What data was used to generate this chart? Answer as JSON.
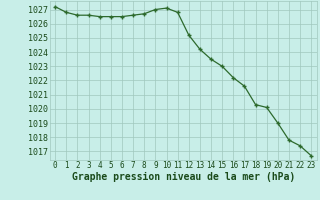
{
  "x": [
    0,
    1,
    2,
    3,
    4,
    5,
    6,
    7,
    8,
    9,
    10,
    11,
    12,
    13,
    14,
    15,
    16,
    17,
    18,
    19,
    20,
    21,
    22,
    23
  ],
  "y": [
    1027.2,
    1026.8,
    1026.6,
    1026.6,
    1026.5,
    1026.5,
    1026.5,
    1026.6,
    1026.7,
    1027.0,
    1027.1,
    1026.8,
    1025.2,
    1024.2,
    1023.5,
    1023.0,
    1022.2,
    1021.6,
    1020.3,
    1020.1,
    1019.0,
    1017.8,
    1017.4,
    1016.7
  ],
  "line_color": "#2d6a2d",
  "marker": "+",
  "marker_size": 3.5,
  "marker_linewidth": 1.0,
  "line_width": 0.9,
  "background_color": "#c8eee8",
  "grid_color": "#a0c8be",
  "xlabel": "Graphe pression niveau de la mer (hPa)",
  "xlabel_fontsize": 7,
  "xlabel_color": "#1a4a1a",
  "ylabel_fontsize": 6,
  "tick_fontsize": 5.5,
  "ylim": [
    1016.4,
    1027.6
  ],
  "yticks": [
    1017,
    1018,
    1019,
    1020,
    1021,
    1022,
    1023,
    1024,
    1025,
    1026,
    1027
  ],
  "xlim": [
    -0.5,
    23.5
  ],
  "xticks": [
    0,
    1,
    2,
    3,
    4,
    5,
    6,
    7,
    8,
    9,
    10,
    11,
    12,
    13,
    14,
    15,
    16,
    17,
    18,
    19,
    20,
    21,
    22,
    23
  ]
}
